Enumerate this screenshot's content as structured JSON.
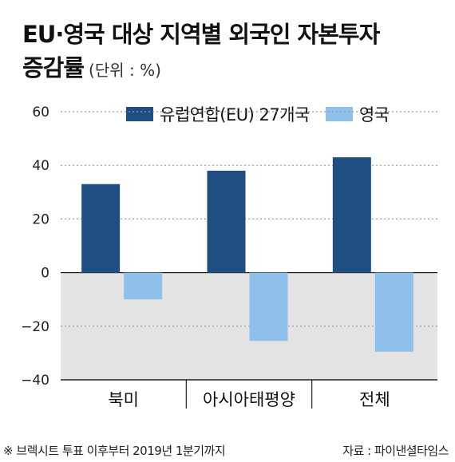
{
  "title_line1": "EU·영국 대상 지역별 외국인 자본투자",
  "title_line2": "증감률",
  "unit": "(단위 : %)",
  "footnote": "※ 브렉시트 투표 이후부터 2019년 1분기까지",
  "source": "자료 : 파이낸셜타임스",
  "colors": {
    "eu": "#1f4e82",
    "uk": "#8ec0ea",
    "negative_band": "#e3e3e3",
    "axis": "#222222",
    "grid": "#9a9a9a"
  },
  "chart_data": {
    "type": "bar",
    "categories": [
      "북미",
      "아시아태평양",
      "전체"
    ],
    "series": [
      {
        "name": "유럽연합(EU) 27개국",
        "values": [
          33,
          38,
          43
        ]
      },
      {
        "name": "영국",
        "values": [
          -10,
          -25.5,
          -29.5
        ]
      }
    ],
    "ylim": [
      -40,
      60
    ],
    "yticks": [
      60,
      40,
      20,
      0,
      -20,
      -40
    ],
    "ytick_labels": [
      "60",
      "40",
      "20",
      "0",
      "−20",
      "−40"
    ],
    "grid": true,
    "legend": "top"
  }
}
